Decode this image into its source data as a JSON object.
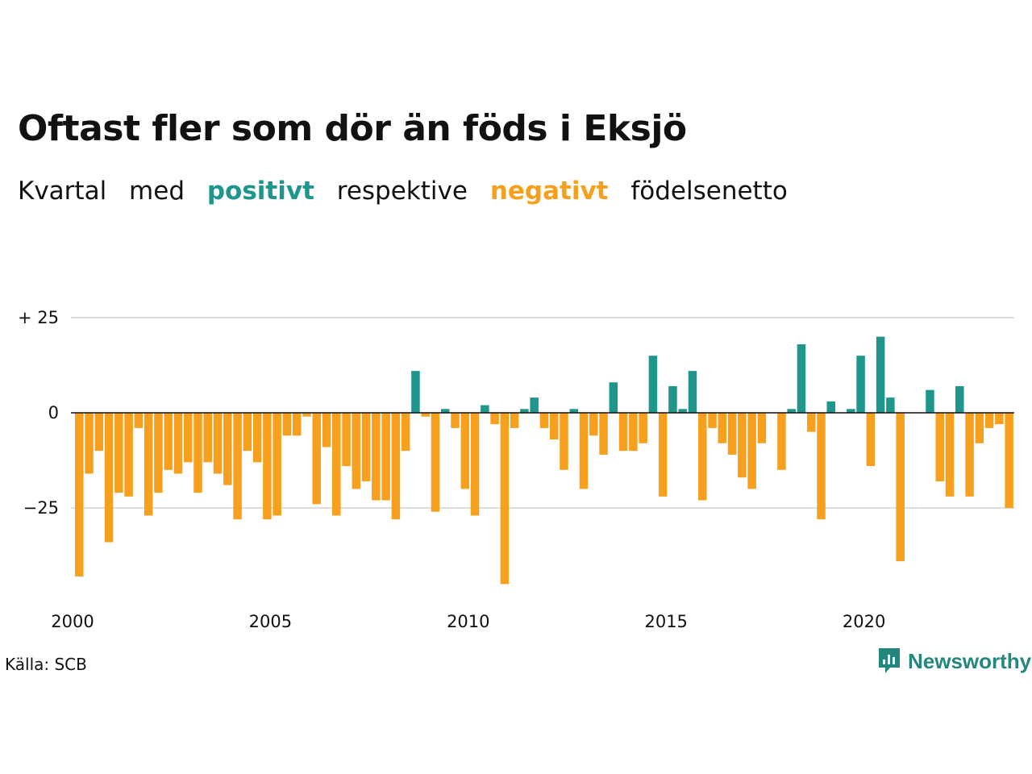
{
  "title": "Oftast fler som dör än föds i Eksjö",
  "subtitle": {
    "w1": "Kvartal",
    "w2": "med",
    "positive": "positivt",
    "w3": "respektive",
    "negative": "negativt",
    "w4": "födelsenetto"
  },
  "source": "Källa: SCB",
  "brand": "Newsworthy",
  "colors": {
    "positive": "#1f968b",
    "negative": "#f7a01e",
    "grid": "#dddddd",
    "axis": "#111111"
  },
  "chart_data": {
    "type": "bar",
    "ylim": [
      -45,
      27
    ],
    "yticks": [
      25,
      0,
      -25
    ],
    "ytick_labels": [
      "+ 25",
      "0",
      "−25"
    ],
    "xticks": [
      "2000",
      "2005",
      "2010",
      "2015",
      "2020"
    ],
    "x_start_year": 2000,
    "x_end_year": 2024,
    "grid": true,
    "values": [
      -43,
      -16,
      -10,
      -34,
      -21,
      -22,
      -4,
      -27,
      -21,
      -15,
      -16,
      -13,
      -21,
      -13,
      -16,
      -19,
      -28,
      -10,
      -13,
      -28,
      -27,
      -6,
      -6,
      -1,
      -24,
      -9,
      -27,
      -14,
      -20,
      -18,
      -23,
      -23,
      -28,
      -10,
      11,
      -1,
      -26,
      1,
      -4,
      -20,
      -27,
      2,
      -3,
      -45,
      -4,
      1,
      4,
      -4,
      -7,
      -15,
      1,
      -20,
      -6,
      -11,
      8,
      -10,
      -10,
      -8,
      15,
      -22,
      7,
      1,
      11,
      -23,
      -4,
      -8,
      -11,
      -17,
      -20,
      -8,
      0,
      -15,
      1,
      18,
      -5,
      -28,
      3,
      0,
      1,
      15,
      -14,
      20,
      4,
      -39,
      0,
      0,
      6,
      -18,
      -22,
      7,
      -22,
      -8,
      -4,
      -3,
      -25
    ]
  }
}
